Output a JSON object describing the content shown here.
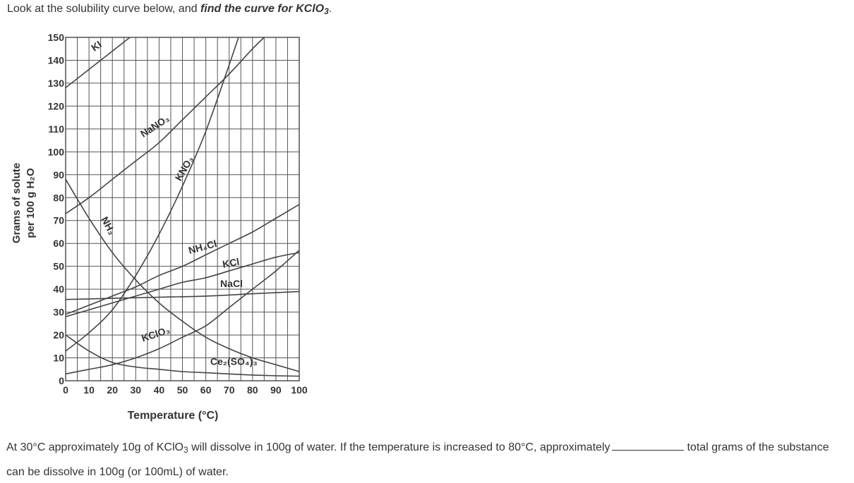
{
  "question": {
    "lead": "Look at the solubility curve below, and ",
    "emphasis": "find the curve for KClO",
    "emphasis_sub": "3",
    "end": "."
  },
  "answer": {
    "part1": "At 30°C approximately 10g of KClO",
    "sub": "3",
    "part2": " will dissolve in 100g of water. If the temperature is increased to 80°C, approximately",
    "part3": "total grams of the substance can be dissolve in 100g (or 100mL) of water."
  },
  "chart_data": {
    "type": "line",
    "xlabel": "Temperature (°C)",
    "ylabel_line1": "Grams of solute",
    "ylabel_line2": "per 100 g H₂O",
    "xlim": [
      0,
      100
    ],
    "ylim": [
      0,
      150
    ],
    "x_ticks": [
      "0",
      "10",
      "20",
      "30",
      "40",
      "50",
      "60",
      "70",
      "80",
      "90",
      "100"
    ],
    "y_ticks": [
      "0",
      "10",
      "20",
      "30",
      "40",
      "50",
      "60",
      "70",
      "80",
      "90",
      "100",
      "110",
      "120",
      "130",
      "140",
      "150"
    ],
    "grid": true,
    "series": [
      {
        "name": "KI",
        "points": [
          [
            0,
            128
          ],
          [
            10,
            136
          ],
          [
            20,
            144
          ],
          [
            30,
            152
          ]
        ],
        "label_at": [
          14,
          145
        ],
        "label_angle": -35
      },
      {
        "name": "NaNO₃",
        "points": [
          [
            0,
            73
          ],
          [
            10,
            80
          ],
          [
            20,
            88
          ],
          [
            30,
            96
          ],
          [
            40,
            104
          ],
          [
            50,
            114
          ],
          [
            60,
            124
          ],
          [
            70,
            134
          ],
          [
            80,
            145
          ],
          [
            85,
            150
          ]
        ],
        "label_at": [
          39,
          110
        ],
        "label_angle": -33
      },
      {
        "name": "KNO₃",
        "points": [
          [
            0,
            13
          ],
          [
            10,
            21
          ],
          [
            20,
            31
          ],
          [
            30,
            46
          ],
          [
            40,
            64
          ],
          [
            50,
            85
          ],
          [
            60,
            109
          ],
          [
            70,
            138
          ],
          [
            74,
            150
          ]
        ],
        "label_at": [
          52,
          92
        ],
        "label_angle": -60
      },
      {
        "name": "NH₃",
        "points": [
          [
            0,
            88
          ],
          [
            10,
            71
          ],
          [
            20,
            56
          ],
          [
            30,
            44
          ],
          [
            40,
            34
          ],
          [
            50,
            26
          ],
          [
            60,
            19
          ],
          [
            70,
            14
          ],
          [
            80,
            10
          ],
          [
            90,
            7
          ],
          [
            100,
            4
          ]
        ],
        "label_at": [
          17,
          67
        ],
        "label_angle": 62
      },
      {
        "name": "NH₄Cl",
        "points": [
          [
            0,
            29
          ],
          [
            10,
            33
          ],
          [
            20,
            37
          ],
          [
            30,
            41
          ],
          [
            40,
            46
          ],
          [
            50,
            50
          ],
          [
            60,
            55
          ],
          [
            70,
            60
          ],
          [
            80,
            65
          ],
          [
            90,
            71
          ],
          [
            100,
            77
          ]
        ],
        "label_at": [
          59,
          57
        ],
        "label_angle": -15
      },
      {
        "name": "KCl",
        "points": [
          [
            0,
            28
          ],
          [
            10,
            31
          ],
          [
            20,
            34
          ],
          [
            30,
            37
          ],
          [
            40,
            40
          ],
          [
            50,
            43
          ],
          [
            60,
            45
          ],
          [
            70,
            48
          ],
          [
            80,
            51
          ],
          [
            90,
            54
          ],
          [
            100,
            56
          ]
        ],
        "label_at": [
          71,
          50
        ],
        "label_angle": -10
      },
      {
        "name": "NaCl",
        "points": [
          [
            0,
            35.5
          ],
          [
            20,
            36
          ],
          [
            40,
            36.5
          ],
          [
            60,
            37
          ],
          [
            80,
            38
          ],
          [
            100,
            39
          ]
        ],
        "label_at": [
          71,
          41
        ],
        "label_angle": 0
      },
      {
        "name": "KClO₃",
        "points": [
          [
            0,
            3
          ],
          [
            10,
            5
          ],
          [
            20,
            7
          ],
          [
            30,
            10
          ],
          [
            40,
            14
          ],
          [
            50,
            19
          ],
          [
            60,
            24
          ],
          [
            70,
            32
          ],
          [
            80,
            40
          ],
          [
            90,
            48
          ],
          [
            100,
            57
          ]
        ],
        "label_at": [
          39,
          19
        ],
        "label_angle": -18
      },
      {
        "name": "Ce₂(SO₄)₃",
        "points": [
          [
            0,
            20
          ],
          [
            10,
            13
          ],
          [
            20,
            8
          ],
          [
            30,
            6
          ],
          [
            40,
            5
          ],
          [
            50,
            4
          ],
          [
            60,
            3.5
          ],
          [
            70,
            3
          ],
          [
            80,
            2.5
          ],
          [
            90,
            2.2
          ],
          [
            100,
            2
          ]
        ],
        "label_at": [
          72,
          7
        ],
        "label_angle": 0
      }
    ]
  }
}
